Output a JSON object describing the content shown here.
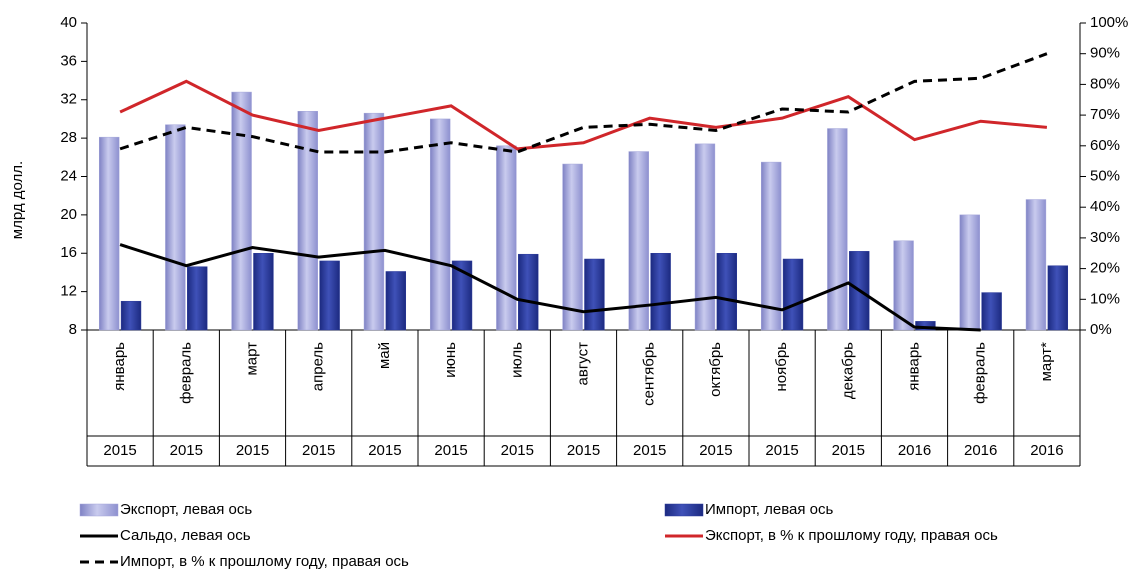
{
  "chart_data": {
    "type": "combo",
    "y_axis_label": "млрд долл.",
    "categories": [
      "январь",
      "февраль",
      "март",
      "апрель",
      "май",
      "июнь",
      "июль",
      "август",
      "сентябрь",
      "октябрь",
      "ноябрь",
      "декабрь",
      "январь",
      "февраль",
      "март*"
    ],
    "years": [
      "2015",
      "2015",
      "2015",
      "2015",
      "2015",
      "2015",
      "2015",
      "2015",
      "2015",
      "2015",
      "2015",
      "2015",
      "2016",
      "2016",
      "2016"
    ],
    "ylim": [
      8,
      40
    ],
    "yticks": [
      8,
      12,
      16,
      20,
      24,
      28,
      32,
      36,
      40
    ],
    "y2lim": [
      0,
      100
    ],
    "y2ticks": [
      {
        "value": 0,
        "label": "0%"
      },
      {
        "value": 10,
        "label": "10%"
      },
      {
        "value": 20,
        "label": "20%"
      },
      {
        "value": 30,
        "label": "30%"
      },
      {
        "value": 40,
        "label": "40%"
      },
      {
        "value": 50,
        "label": "50%"
      },
      {
        "value": 60,
        "label": "60%"
      },
      {
        "value": 70,
        "label": "70%"
      },
      {
        "value": 80,
        "label": "80%"
      },
      {
        "value": 90,
        "label": "90%"
      },
      {
        "value": 100,
        "label": "100%"
      }
    ],
    "series": [
      {
        "name": "Экспорт, левая ось",
        "type": "bar",
        "color": "#a3a5d9",
        "values": [
          28.1,
          29.4,
          32.8,
          30.8,
          30.6,
          30.0,
          27.2,
          25.3,
          26.6,
          27.4,
          25.5,
          29.0,
          17.3,
          20.0,
          21.6
        ]
      },
      {
        "name": "Импорт, левая ось",
        "type": "bar",
        "color": "#2b3a9a",
        "values": [
          11.0,
          14.6,
          16.0,
          15.2,
          14.1,
          15.2,
          15.9,
          15.4,
          16.0,
          16.0,
          15.4,
          16.2,
          8.9,
          11.9,
          14.7
        ]
      },
      {
        "name": "Сальдо, левая ось",
        "type": "line",
        "color": "#000000",
        "values": [
          16.9,
          14.7,
          16.6,
          15.6,
          16.3,
          14.7,
          11.2,
          9.9,
          10.6,
          11.4,
          10.1,
          12.9,
          8.3,
          8.0,
          null
        ]
      },
      {
        "name": "Экспорт, в % к прошлому году, правая ось",
        "type": "line",
        "axis": "y2",
        "color": "#d0262a",
        "values": [
          71,
          81,
          70,
          65,
          69,
          73,
          59,
          61,
          69,
          66,
          69,
          76,
          62,
          68,
          66
        ]
      },
      {
        "name": "Импорт, в % к прошлому году, правая ось",
        "type": "line",
        "axis": "y2",
        "color": "#000000",
        "dashed": true,
        "values": [
          59,
          66,
          63,
          58,
          58,
          61,
          58,
          66,
          67,
          65,
          72,
          71,
          81,
          82,
          90
        ]
      }
    ]
  }
}
